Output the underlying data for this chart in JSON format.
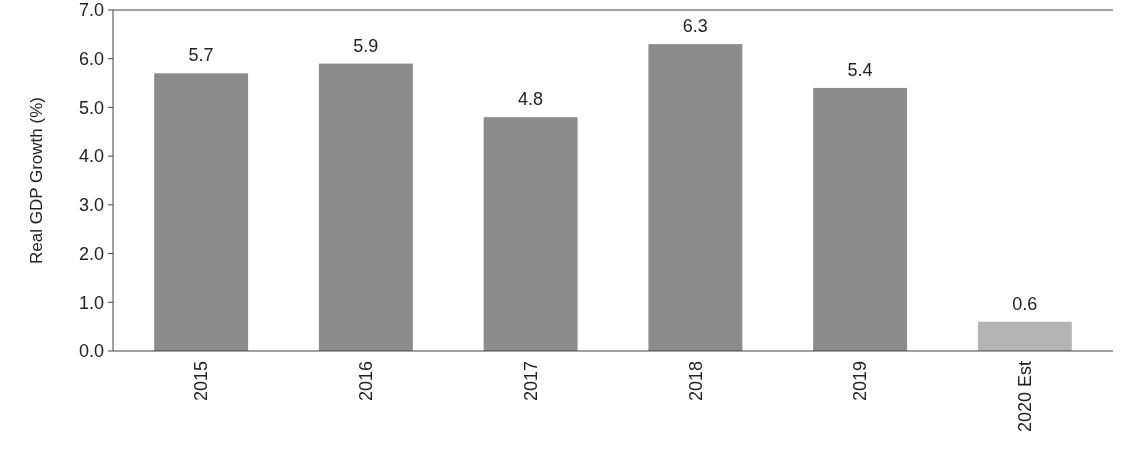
{
  "chart_data": {
    "type": "bar",
    "ylabel": "Real GDP Growth (%)",
    "categories": [
      "2015",
      "2016",
      "2017",
      "2018",
      "2019",
      "2020 Est"
    ],
    "values": [
      5.7,
      5.9,
      4.8,
      6.3,
      5.4,
      0.6
    ],
    "colors": [
      "#8c8c8c",
      "#8c8c8c",
      "#8c8c8c",
      "#8c8c8c",
      "#8c8c8c",
      "#b4b4b4"
    ],
    "ylim": [
      0,
      7
    ],
    "yticks": [
      {
        "value": 0,
        "label": "0.0"
      },
      {
        "value": 1,
        "label": "1.0"
      },
      {
        "value": 2,
        "label": "2.0"
      },
      {
        "value": 3,
        "label": "3.0"
      },
      {
        "value": 4,
        "label": "4.0"
      },
      {
        "value": 5,
        "label": "5.0"
      },
      {
        "value": 6,
        "label": "6.0"
      },
      {
        "value": 7,
        "label": "7.0"
      }
    ],
    "data_labels": true,
    "grid": false
  }
}
